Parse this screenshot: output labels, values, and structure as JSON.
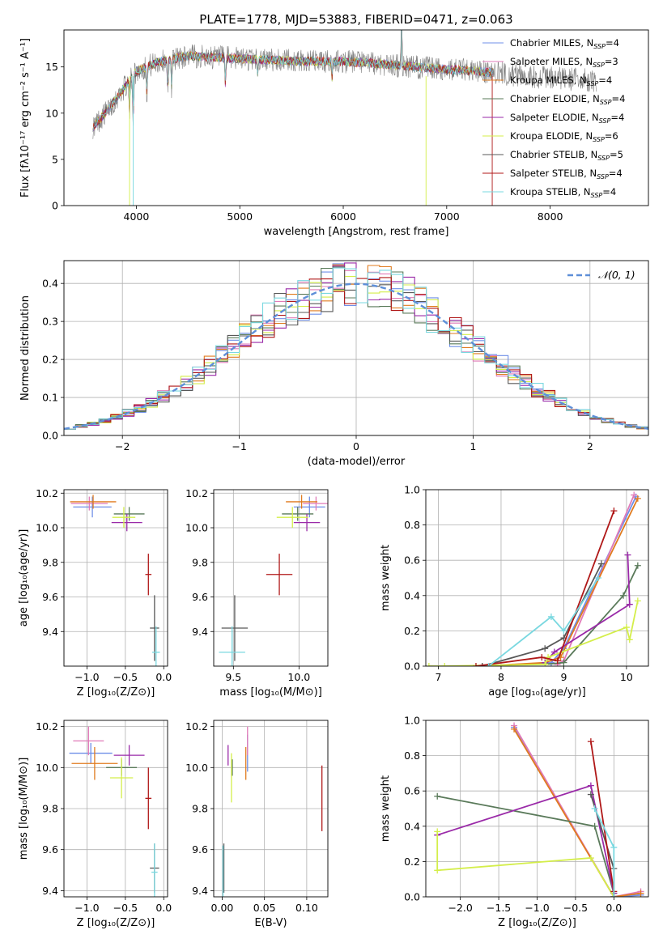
{
  "figure_title": "PLATE=1778, MJD=53883, FIBERID=0471, z=0.063",
  "colors": {
    "chabrier_miles": "#6f8fe8",
    "salpeter_miles": "#e07ab8",
    "kroupa_miles": "#e07b1f",
    "chabrier_elodie": "#5a7a5a",
    "salpeter_elodie": "#9a2aa8",
    "kroupa_elodie": "#d4ee4a",
    "chabrier_stelib": "#585858",
    "salpeter_stelib": "#b01818",
    "kroupa_stelib": "#7ad8e0",
    "normal_curve": "#5e8fd8",
    "data_spectrum": "#808080",
    "grid": "#b0b0b0"
  },
  "chart_data": [
    {
      "id": "spectrum",
      "type": "line",
      "xlabel": "wavelength [Angstrom, rest frame]",
      "ylabel": "Flux [fλ10⁻¹⁷ erg cm⁻² s⁻¹ A⁻¹]",
      "xlim": [
        3300,
        8950
      ],
      "ylim": [
        0,
        19
      ],
      "xticks": [
        4000,
        5000,
        6000,
        7000,
        8000
      ],
      "yticks": [
        0,
        5,
        10,
        15
      ],
      "grid": false,
      "legend_position": "right",
      "legend": [
        {
          "label": "Chabrier MILES, N_SSP=4",
          "main": "Chabrier MILES, N",
          "sub": "SSP",
          "tail": "=4",
          "color_key": "chabrier_miles"
        },
        {
          "label": "Salpeter MILES, N_SSP=3",
          "main": "Salpeter MILES, N",
          "sub": "SSP",
          "tail": "=3",
          "color_key": "salpeter_miles"
        },
        {
          "label": "Kroupa MILES, N_SSP=4",
          "main": "Kroupa MILES, N",
          "sub": "SSP",
          "tail": "=4",
          "color_key": "kroupa_miles"
        },
        {
          "label": "Chabrier ELODIE, N_SSP=4",
          "main": "Chabrier ELODIE, N",
          "sub": "SSP",
          "tail": "=4",
          "color_key": "chabrier_elodie"
        },
        {
          "label": "Salpeter ELODIE, N_SSP=4",
          "main": "Salpeter ELODIE, N",
          "sub": "SSP",
          "tail": "=4",
          "color_key": "salpeter_elodie"
        },
        {
          "label": "Kroupa ELODIE, N_SSP=6",
          "main": "Kroupa ELODIE, N",
          "sub": "SSP",
          "tail": "=6",
          "color_key": "kroupa_elodie"
        },
        {
          "label": "Chabrier STELIB, N_SSP=5",
          "main": "Chabrier STELIB, N",
          "sub": "SSP",
          "tail": "=5",
          "color_key": "chabrier_stelib"
        },
        {
          "label": "Salpeter STELIB, N_SSP=4",
          "main": "Salpeter STELIB, N",
          "sub": "SSP",
          "tail": "=4",
          "color_key": "salpeter_stelib"
        },
        {
          "label": "Kroupa STELIB, N_SSP=4",
          "main": "Kroupa STELIB, N",
          "sub": "SSP",
          "tail": "=4",
          "color_key": "kroupa_stelib"
        }
      ],
      "continuum": [
        [
          3580,
          8.5
        ],
        [
          3700,
          10
        ],
        [
          3800,
          11.5
        ],
        [
          3900,
          13
        ],
        [
          4000,
          14.5
        ],
        [
          4200,
          15.5
        ],
        [
          4500,
          16.2
        ],
        [
          4800,
          16
        ],
        [
          5200,
          15.8
        ],
        [
          5600,
          15.6
        ],
        [
          6000,
          15.6
        ],
        [
          6400,
          15.3
        ],
        [
          6800,
          14.9
        ],
        [
          7200,
          14.6
        ],
        [
          7450,
          14.4
        ],
        [
          8000,
          13.8
        ],
        [
          8450,
          13.5
        ]
      ],
      "absorption_features": [
        [
          3934,
          3.5
        ],
        [
          3969,
          5
        ],
        [
          4102,
          3
        ],
        [
          4304,
          4
        ],
        [
          4341,
          3
        ],
        [
          4861,
          3
        ],
        [
          5175,
          2
        ],
        [
          5890,
          2
        ]
      ],
      "emission_features": [
        [
          6563,
          7
        ]
      ],
      "models_end_wavelength": 7450
    },
    {
      "id": "residuals",
      "type": "bar",
      "subtype": "step-histogram",
      "xlabel": "(data-model)/error",
      "ylabel": "Normed distribution",
      "xlim": [
        -2.5,
        2.5
      ],
      "ylim": [
        0,
        0.46
      ],
      "xticks": [
        -2,
        -1,
        0,
        1,
        2
      ],
      "yticks": [
        0,
        0.1,
        0.2,
        0.3,
        0.4
      ],
      "grid": true,
      "legend_position": "top-right",
      "curve_label": "𝒩(0, 1)",
      "bin_width": 0.1
    },
    {
      "id": "age_vs_Z",
      "type": "scatter",
      "style": "errorbar",
      "xlabel": "Z [log₁₀(Z/Z⊙)]",
      "ylabel": "age  [log₁₀(age/yr)]",
      "xlim": [
        -1.3,
        0.05
      ],
      "ylim": [
        9.2,
        10.22
      ],
      "xticks": [
        -1.0,
        -0.5,
        0.0
      ],
      "yticks": [
        9.4,
        9.6,
        9.8,
        10.0,
        10.2
      ],
      "points": [
        {
          "color_key": "chabrier_miles",
          "x": -0.93,
          "y": 10.12,
          "xerr": 0.25,
          "yerr": 0.06
        },
        {
          "color_key": "salpeter_miles",
          "x": -0.97,
          "y": 10.14,
          "xerr": 0.24,
          "yerr": 0.04
        },
        {
          "color_key": "kroupa_miles",
          "x": -0.92,
          "y": 10.15,
          "xerr": 0.3,
          "yerr": 0.04
        },
        {
          "color_key": "chabrier_elodie",
          "x": -0.45,
          "y": 10.08,
          "xerr": 0.2,
          "yerr": 0.04
        },
        {
          "color_key": "salpeter_elodie",
          "x": -0.48,
          "y": 10.03,
          "xerr": 0.2,
          "yerr": 0.05
        },
        {
          "color_key": "kroupa_elodie",
          "x": -0.52,
          "y": 10.06,
          "xerr": 0.15,
          "yerr": 0.06
        },
        {
          "color_key": "chabrier_stelib",
          "x": -0.12,
          "y": 9.42,
          "xerr": 0.06,
          "yerr": 0.19
        },
        {
          "color_key": "salpeter_stelib",
          "x": -0.2,
          "y": 9.73,
          "xerr": 0.04,
          "yerr": 0.12
        },
        {
          "color_key": "kroupa_stelib",
          "x": -0.1,
          "y": 9.28,
          "xerr": 0.05,
          "yerr": 0.15
        }
      ]
    },
    {
      "id": "age_vs_mass",
      "type": "scatter",
      "style": "errorbar",
      "xlabel": "mass [log₁₀(M/M⊙)]",
      "ylabel": "",
      "xlim": [
        9.35,
        10.22
      ],
      "ylim": [
        9.2,
        10.22
      ],
      "xticks": [
        9.5,
        10.0
      ],
      "yticks": [
        9.4,
        9.6,
        9.8,
        10.0,
        10.2
      ],
      "points": [
        {
          "color_key": "chabrier_miles",
          "x": 10.08,
          "y": 10.12,
          "xerr": 0.12,
          "yerr": 0.06
        },
        {
          "color_key": "salpeter_miles",
          "x": 10.13,
          "y": 10.14,
          "xerr": 0.1,
          "yerr": 0.04
        },
        {
          "color_key": "kroupa_miles",
          "x": 10.02,
          "y": 10.15,
          "xerr": 0.12,
          "yerr": 0.04
        },
        {
          "color_key": "chabrier_elodie",
          "x": 9.99,
          "y": 10.08,
          "xerr": 0.12,
          "yerr": 0.04
        },
        {
          "color_key": "salpeter_elodie",
          "x": 10.06,
          "y": 10.03,
          "xerr": 0.1,
          "yerr": 0.05
        },
        {
          "color_key": "kroupa_elodie",
          "x": 9.95,
          "y": 10.06,
          "xerr": 0.12,
          "yerr": 0.06
        },
        {
          "color_key": "chabrier_stelib",
          "x": 9.51,
          "y": 9.42,
          "xerr": 0.1,
          "yerr": 0.19
        },
        {
          "color_key": "salpeter_stelib",
          "x": 9.85,
          "y": 9.73,
          "xerr": 0.1,
          "yerr": 0.12
        },
        {
          "color_key": "kroupa_stelib",
          "x": 9.49,
          "y": 9.28,
          "xerr": 0.1,
          "yerr": 0.15
        }
      ]
    },
    {
      "id": "weight_vs_age",
      "type": "line",
      "xlabel": "age  [log₁₀(age/yr)]",
      "ylabel": "mass weight",
      "xlim": [
        6.8,
        10.35
      ],
      "ylim": [
        0,
        1
      ],
      "xticks": [
        7,
        8,
        9,
        10
      ],
      "yticks": [
        0,
        0.2,
        0.4,
        0.6,
        0.8,
        1.0
      ],
      "grid": true,
      "series": [
        {
          "color_key": "chabrier_miles",
          "points": [
            [
              7.7,
              0.0
            ],
            [
              8.8,
              0.02
            ],
            [
              9.0,
              0.1
            ],
            [
              10.15,
              0.96
            ]
          ]
        },
        {
          "color_key": "salpeter_miles",
          "points": [
            [
              8.9,
              0.01
            ],
            [
              9.0,
              0.03
            ],
            [
              10.12,
              0.97
            ]
          ]
        },
        {
          "color_key": "kroupa_miles",
          "points": [
            [
              7.7,
              0.0
            ],
            [
              8.7,
              0.02
            ],
            [
              8.95,
              0.05
            ],
            [
              10.18,
              0.95
            ]
          ]
        },
        {
          "color_key": "chabrier_elodie",
          "points": [
            [
              8.7,
              0.01
            ],
            [
              9.0,
              0.02
            ],
            [
              9.95,
              0.4
            ],
            [
              10.18,
              0.57
            ]
          ]
        },
        {
          "color_key": "salpeter_elodie",
          "points": [
            [
              8.7,
              0.02
            ],
            [
              8.85,
              0.08
            ],
            [
              10.05,
              0.35
            ],
            [
              10.02,
              0.63
            ]
          ]
        },
        {
          "color_key": "kroupa_elodie",
          "points": [
            [
              6.85,
              0.0
            ],
            [
              7.1,
              0.0
            ],
            [
              8.7,
              0.01
            ],
            [
              8.75,
              0.05
            ],
            [
              10.0,
              0.22
            ],
            [
              10.05,
              0.15
            ],
            [
              10.18,
              0.37
            ]
          ]
        },
        {
          "color_key": "chabrier_stelib",
          "points": [
            [
              7.7,
              0.0
            ],
            [
              8.7,
              0.1
            ],
            [
              9.0,
              0.16
            ],
            [
              9.6,
              0.58
            ]
          ]
        },
        {
          "color_key": "salpeter_stelib",
          "points": [
            [
              7.6,
              0.0
            ],
            [
              8.65,
              0.05
            ],
            [
              8.9,
              0.03
            ],
            [
              9.8,
              0.88
            ]
          ]
        },
        {
          "color_key": "kroupa_stelib",
          "points": [
            [
              7.8,
              0.0
            ],
            [
              8.8,
              0.28
            ],
            [
              9.0,
              0.2
            ],
            [
              9.55,
              0.5
            ]
          ]
        }
      ]
    },
    {
      "id": "mass_vs_Z",
      "type": "scatter",
      "style": "errorbar",
      "xlabel": "Z [log₁₀(Z/Z⊙)]",
      "ylabel": "mass [log₁₀(M/M⊙)]",
      "xlim": [
        -1.3,
        0.05
      ],
      "ylim": [
        9.37,
        10.23
      ],
      "xticks": [
        -1.0,
        -0.5,
        0.0
      ],
      "yticks": [
        9.4,
        9.6,
        9.8,
        10.0,
        10.2
      ],
      "points": [
        {
          "color_key": "chabrier_miles",
          "x": -0.95,
          "y": 10.07,
          "xerr": 0.28,
          "yerr": 0.05
        },
        {
          "color_key": "salpeter_miles",
          "x": -0.98,
          "y": 10.13,
          "xerr": 0.2,
          "yerr": 0.07
        },
        {
          "color_key": "kroupa_miles",
          "x": -0.9,
          "y": 10.02,
          "xerr": 0.3,
          "yerr": 0.08
        },
        {
          "color_key": "chabrier_elodie",
          "x": -0.55,
          "y": 10.0,
          "xerr": 0.2,
          "yerr": 0.04
        },
        {
          "color_key": "salpeter_elodie",
          "x": -0.45,
          "y": 10.06,
          "xerr": 0.2,
          "yerr": 0.05
        },
        {
          "color_key": "kroupa_elodie",
          "x": -0.55,
          "y": 9.95,
          "xerr": 0.15,
          "yerr": 0.1
        },
        {
          "color_key": "chabrier_stelib",
          "x": -0.12,
          "y": 9.51,
          "xerr": 0.06,
          "yerr": 0.12
        },
        {
          "color_key": "salpeter_stelib",
          "x": -0.2,
          "y": 9.85,
          "xerr": 0.04,
          "yerr": 0.15
        },
        {
          "color_key": "kroupa_stelib",
          "x": -0.12,
          "y": 9.49,
          "xerr": 0.04,
          "yerr": 0.14
        }
      ]
    },
    {
      "id": "mass_vs_EBV",
      "type": "scatter",
      "style": "errorbar",
      "xlabel": "E(B-V)",
      "ylabel": "",
      "xlim": [
        -0.01,
        0.125
      ],
      "ylim": [
        9.37,
        10.23
      ],
      "xticks": [
        0.0,
        0.05,
        0.1
      ],
      "yticks": [
        9.4,
        9.6,
        9.8,
        10.0,
        10.2
      ],
      "points": [
        {
          "color_key": "chabrier_miles",
          "x": 0.03,
          "y": 10.07,
          "xerr": 0,
          "yerr": 0.09
        },
        {
          "color_key": "salpeter_miles",
          "x": 0.03,
          "y": 10.13,
          "xerr": 0,
          "yerr": 0.07
        },
        {
          "color_key": "kroupa_miles",
          "x": 0.028,
          "y": 10.02,
          "xerr": 0,
          "yerr": 0.08
        },
        {
          "color_key": "chabrier_elodie",
          "x": 0.012,
          "y": 10.0,
          "xerr": 0,
          "yerr": 0.04
        },
        {
          "color_key": "salpeter_elodie",
          "x": 0.007,
          "y": 10.06,
          "xerr": 0,
          "yerr": 0.05
        },
        {
          "color_key": "kroupa_elodie",
          "x": 0.011,
          "y": 9.95,
          "xerr": 0,
          "yerr": 0.12
        },
        {
          "color_key": "chabrier_stelib",
          "x": 0.002,
          "y": 9.51,
          "xerr": 0,
          "yerr": 0.12
        },
        {
          "color_key": "salpeter_stelib",
          "x": 0.118,
          "y": 9.85,
          "xerr": 0,
          "yerr": 0.16
        },
        {
          "color_key": "kroupa_stelib",
          "x": 0.001,
          "y": 9.49,
          "xerr": 0,
          "yerr": 0.13
        }
      ]
    },
    {
      "id": "weight_vs_Z",
      "type": "line",
      "xlabel": "Z [log₁₀(Z/Z⊙)]",
      "ylabel": "mass weight",
      "xlim": [
        -2.45,
        0.45
      ],
      "ylim": [
        0,
        1
      ],
      "xticks": [
        -2.0,
        -1.5,
        -1.0,
        -0.5,
        0.0
      ],
      "yticks": [
        0,
        0.2,
        0.4,
        0.6,
        0.8,
        1.0
      ],
      "grid": true,
      "series": [
        {
          "color_key": "chabrier_miles",
          "points": [
            [
              -1.3,
              0.96
            ],
            [
              0.0,
              0.0
            ],
            [
              0.35,
              0.01
            ]
          ]
        },
        {
          "color_key": "salpeter_miles",
          "points": [
            [
              -1.3,
              0.97
            ],
            [
              0.0,
              0.0
            ],
            [
              0.35,
              0.03
            ]
          ]
        },
        {
          "color_key": "kroupa_miles",
          "points": [
            [
              -1.3,
              0.95
            ],
            [
              0.0,
              0.0
            ],
            [
              0.35,
              0.02
            ]
          ]
        },
        {
          "color_key": "chabrier_elodie",
          "points": [
            [
              -2.3,
              0.57
            ],
            [
              -0.25,
              0.4
            ],
            [
              0.0,
              0.02
            ]
          ]
        },
        {
          "color_key": "salpeter_elodie",
          "points": [
            [
              -2.3,
              0.35
            ],
            [
              -0.3,
              0.63
            ],
            [
              0.0,
              0.02
            ]
          ]
        },
        {
          "color_key": "kroupa_elodie",
          "points": [
            [
              -2.3,
              0.37
            ],
            [
              -2.3,
              0.15
            ],
            [
              -0.3,
              0.22
            ],
            [
              0.0,
              0.0
            ]
          ]
        },
        {
          "color_key": "chabrier_stelib",
          "points": [
            [
              -0.3,
              0.58
            ],
            [
              0.0,
              0.16
            ],
            [
              0.0,
              0.0
            ]
          ]
        },
        {
          "color_key": "salpeter_stelib",
          "points": [
            [
              -0.3,
              0.88
            ],
            [
              0.0,
              0.03
            ],
            [
              0.0,
              0.0
            ]
          ]
        },
        {
          "color_key": "kroupa_stelib",
          "points": [
            [
              -0.25,
              0.5
            ],
            [
              0.0,
              0.28
            ],
            [
              0.0,
              0.0
            ]
          ]
        }
      ]
    }
  ]
}
